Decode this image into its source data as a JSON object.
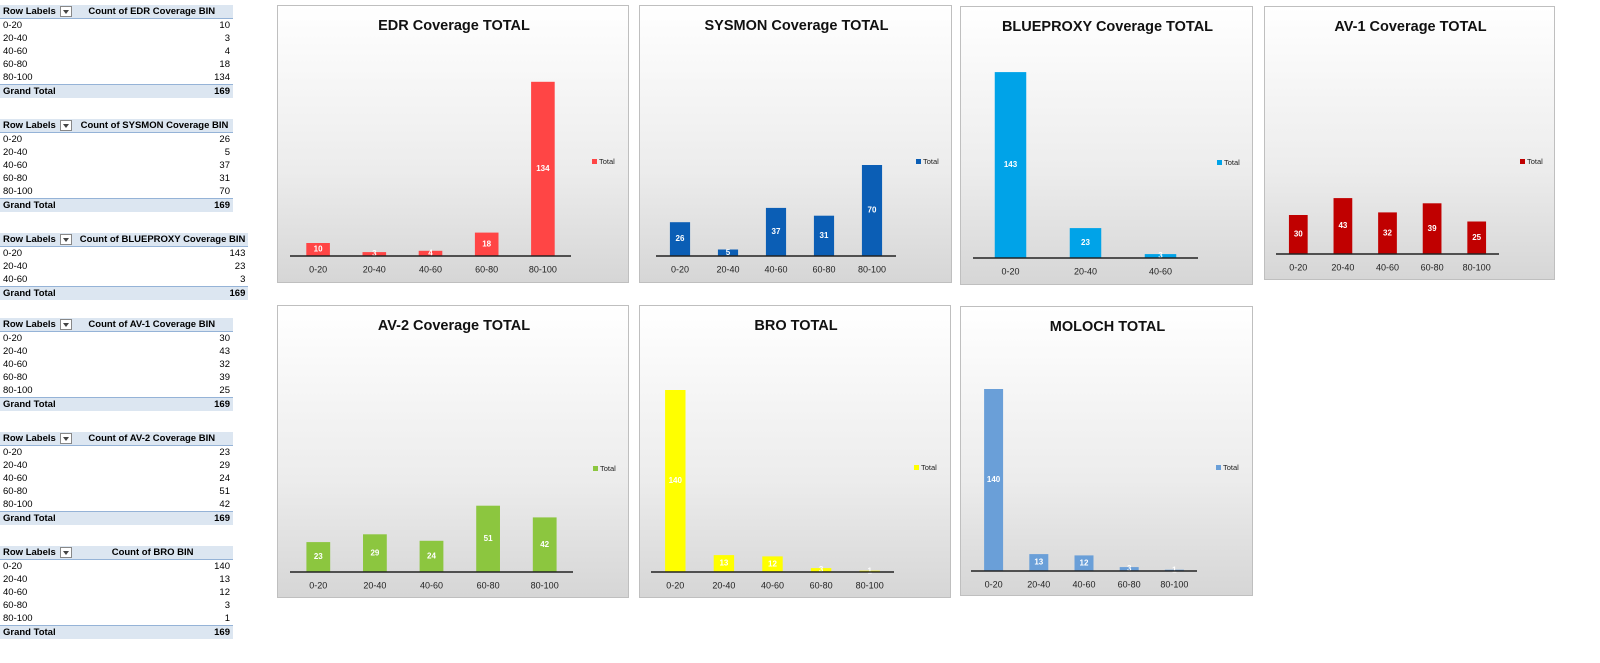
{
  "tables": [
    {
      "header": [
        "Row Labels",
        "Count of EDR Coverage BIN"
      ],
      "rows": [
        [
          "0-20",
          10
        ],
        [
          "20-40",
          3
        ],
        [
          "40-60",
          4
        ],
        [
          "60-80",
          18
        ],
        [
          "80-100",
          134
        ]
      ],
      "total": [
        "Grand Total",
        169
      ]
    },
    {
      "header": [
        "Row Labels",
        "Count of SYSMON Coverage BIN"
      ],
      "rows": [
        [
          "0-20",
          26
        ],
        [
          "20-40",
          5
        ],
        [
          "40-60",
          37
        ],
        [
          "60-80",
          31
        ],
        [
          "80-100",
          70
        ]
      ],
      "total": [
        "Grand Total",
        169
      ]
    },
    {
      "header": [
        "Row Labels",
        "Count of BLUEPROXY Coverage BIN"
      ],
      "rows": [
        [
          "0-20",
          143
        ],
        [
          "20-40",
          23
        ],
        [
          "40-60",
          3
        ]
      ],
      "total": [
        "Grand Total",
        169
      ]
    },
    {
      "header": [
        "Row Labels",
        "Count of AV-1 Coverage BIN"
      ],
      "rows": [
        [
          "0-20",
          30
        ],
        [
          "20-40",
          43
        ],
        [
          "40-60",
          32
        ],
        [
          "60-80",
          39
        ],
        [
          "80-100",
          25
        ]
      ],
      "total": [
        "Grand Total",
        169
      ]
    },
    {
      "header": [
        "Row Labels",
        "Count of AV-2 Coverage BIN"
      ],
      "rows": [
        [
          "0-20",
          23
        ],
        [
          "20-40",
          29
        ],
        [
          "40-60",
          24
        ],
        [
          "60-80",
          51
        ],
        [
          "80-100",
          42
        ]
      ],
      "total": [
        "Grand Total",
        169
      ]
    },
    {
      "header": [
        "Row Labels",
        "Count of BRO BIN"
      ],
      "rows": [
        [
          "0-20",
          140
        ],
        [
          "20-40",
          13
        ],
        [
          "40-60",
          12
        ],
        [
          "60-80",
          3
        ],
        [
          "80-100",
          1
        ]
      ],
      "total": [
        "Grand Total",
        169
      ]
    }
  ],
  "charts": [
    {
      "type": "bar",
      "title": "EDR Coverage  TOTAL",
      "categories": [
        "0-20",
        "20-40",
        "40-60",
        "60-80",
        "80-100"
      ],
      "values": [
        10,
        3,
        4,
        18,
        134
      ],
      "color": "#ff4545",
      "legend": "Total"
    },
    {
      "type": "bar",
      "title": "SYSMON Coverage TOTAL",
      "categories": [
        "0-20",
        "20-40",
        "40-60",
        "60-80",
        "80-100"
      ],
      "values": [
        26,
        5,
        37,
        31,
        70
      ],
      "color": "#0b5eb5",
      "legend": "Total"
    },
    {
      "type": "bar",
      "title": "BLUEPROXY Coverage TOTAL",
      "categories": [
        "0-20",
        "20-40",
        "40-60"
      ],
      "values": [
        143,
        23,
        3
      ],
      "color": "#00a3e8",
      "legend": "Total"
    },
    {
      "type": "bar",
      "title": "AV-1 Coverage TOTAL",
      "categories": [
        "0-20",
        "20-40",
        "40-60",
        "60-80",
        "80-100"
      ],
      "values": [
        30,
        43,
        32,
        39,
        25
      ],
      "color": "#c00000",
      "legend": "Total"
    },
    {
      "type": "bar",
      "title": "AV-2 Coverage TOTAL",
      "categories": [
        "0-20",
        "20-40",
        "40-60",
        "60-80",
        "80-100"
      ],
      "values": [
        23,
        29,
        24,
        51,
        42
      ],
      "color": "#8cc63f",
      "legend": "Total"
    },
    {
      "type": "bar",
      "title": "BRO TOTAL",
      "categories": [
        "0-20",
        "20-40",
        "40-60",
        "60-80",
        "80-100"
      ],
      "values": [
        140,
        13,
        12,
        3,
        1
      ],
      "color": "#ffff00",
      "legend": "Total"
    },
    {
      "type": "bar",
      "title": "MOLOCH TOTAL",
      "categories": [
        "0-20",
        "20-40",
        "40-60",
        "60-80",
        "80-100"
      ],
      "values": [
        140,
        13,
        12,
        3,
        1
      ],
      "color": "#6a9fd8",
      "legend": "Total"
    }
  ]
}
